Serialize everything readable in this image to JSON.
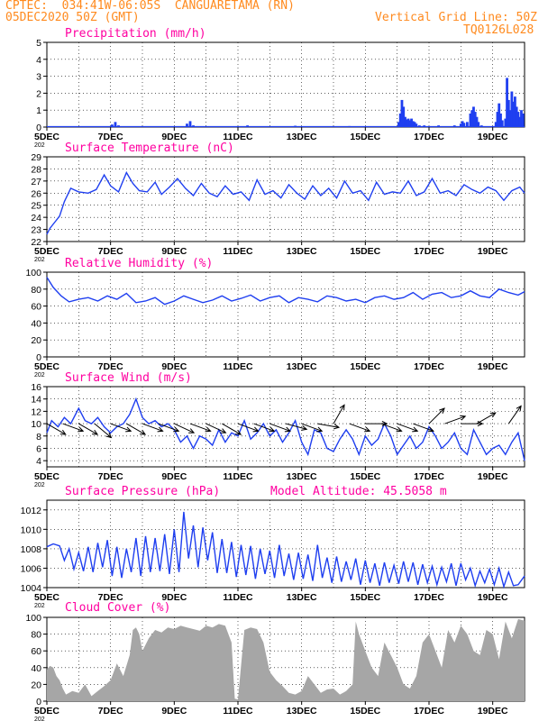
{
  "header": {
    "source": "CPTEC:",
    "coords": "034:41W-06:05S",
    "station": "CANGUARETAMA (RN)",
    "init": "05DEC2020 50Z (GMT)",
    "grid_note": "Vertical Grid Line: 50Z",
    "model_code": "TQ0126L028",
    "altitude_note": "Model Altitude: 45.5058 m",
    "year_stub": "202"
  },
  "x_ticks": [
    "5DEC",
    "7DEC",
    "9DEC",
    "11DEC",
    "13DEC",
    "15DEC",
    "17DEC",
    "19DEC"
  ],
  "colors": {
    "line": "#1f3ff0",
    "bar": "#1f3ff0",
    "cloud": "#a6a6a6",
    "title": "#ff00a0",
    "header": "#ff8a1e"
  },
  "chart_data": [
    {
      "type": "bar",
      "title": "Precipitation (mm/h)",
      "x_range_days": [
        "05DEC",
        "20DEC"
      ],
      "ylim": [
        0,
        5
      ],
      "yticks": [
        0,
        1,
        2,
        3,
        4,
        5
      ],
      "grid": true,
      "events": [
        {
          "day": 7.05,
          "value": 0.15
        },
        {
          "day": 7.15,
          "value": 0.3
        },
        {
          "day": 7.25,
          "value": 0.1
        },
        {
          "day": 9.4,
          "value": 0.2
        },
        {
          "day": 9.5,
          "value": 0.35
        },
        {
          "day": 9.6,
          "value": 0.1
        },
        {
          "day": 11.3,
          "value": 0.1
        },
        {
          "day": 12.8,
          "value": 0.08
        },
        {
          "day": 14.5,
          "value": 0.06
        },
        {
          "day": 16.05,
          "value": 0.3
        },
        {
          "day": 16.1,
          "value": 0.8
        },
        {
          "day": 16.15,
          "value": 1.6
        },
        {
          "day": 16.2,
          "value": 1.2
        },
        {
          "day": 16.25,
          "value": 0.6
        },
        {
          "day": 16.3,
          "value": 0.45
        },
        {
          "day": 16.35,
          "value": 0.5
        },
        {
          "day": 16.4,
          "value": 0.4
        },
        {
          "day": 16.45,
          "value": 0.5
        },
        {
          "day": 16.5,
          "value": 0.35
        },
        {
          "day": 16.55,
          "value": 0.3
        },
        {
          "day": 16.6,
          "value": 0.2
        },
        {
          "day": 16.7,
          "value": 0.1
        },
        {
          "day": 16.85,
          "value": 0.1
        },
        {
          "day": 17.3,
          "value": 0.1
        },
        {
          "day": 17.8,
          "value": 0.1
        },
        {
          "day": 18.0,
          "value": 0.2
        },
        {
          "day": 18.05,
          "value": 0.35
        },
        {
          "day": 18.1,
          "value": 0.25
        },
        {
          "day": 18.2,
          "value": 0.3
        },
        {
          "day": 18.3,
          "value": 0.8
        },
        {
          "day": 18.35,
          "value": 1.0
        },
        {
          "day": 18.4,
          "value": 1.2
        },
        {
          "day": 18.45,
          "value": 0.9
        },
        {
          "day": 18.5,
          "value": 0.6
        },
        {
          "day": 18.55,
          "value": 0.3
        },
        {
          "day": 18.65,
          "value": 0.1
        },
        {
          "day": 19.1,
          "value": 0.3
        },
        {
          "day": 19.15,
          "value": 0.9
        },
        {
          "day": 19.2,
          "value": 1.4
        },
        {
          "day": 19.25,
          "value": 0.8
        },
        {
          "day": 19.3,
          "value": 0.4
        },
        {
          "day": 19.4,
          "value": 0.5
        },
        {
          "day": 19.45,
          "value": 2.9
        },
        {
          "day": 19.5,
          "value": 1.6
        },
        {
          "day": 19.55,
          "value": 1.0
        },
        {
          "day": 19.6,
          "value": 2.1
        },
        {
          "day": 19.65,
          "value": 1.5
        },
        {
          "day": 19.7,
          "value": 1.8
        },
        {
          "day": 19.75,
          "value": 1.2
        },
        {
          "day": 19.8,
          "value": 0.9
        },
        {
          "day": 19.85,
          "value": 0.6
        },
        {
          "day": 19.9,
          "value": 1.0
        },
        {
          "day": 19.95,
          "value": 0.8
        }
      ]
    },
    {
      "type": "line",
      "title": "Surface Temperature (nC)",
      "ylim": [
        22,
        29
      ],
      "yticks": [
        22,
        23,
        24,
        25,
        26,
        27,
        28,
        29
      ],
      "grid": true,
      "x": [
        5.0,
        5.1,
        5.25,
        5.4,
        5.55,
        5.75,
        6.0,
        6.3,
        6.55,
        6.8,
        7.0,
        7.25,
        7.5,
        7.7,
        7.9,
        8.15,
        8.4,
        8.6,
        8.85,
        9.1,
        9.35,
        9.6,
        9.85,
        10.1,
        10.35,
        10.6,
        10.85,
        11.1,
        11.35,
        11.6,
        11.85,
        12.1,
        12.35,
        12.6,
        12.85,
        13.1,
        13.35,
        13.6,
        13.85,
        14.1,
        14.35,
        14.6,
        14.85,
        15.1,
        15.35,
        15.6,
        15.85,
        16.1,
        16.35,
        16.6,
        16.85,
        17.1,
        17.35,
        17.6,
        17.85,
        18.1,
        18.35,
        18.6,
        18.85,
        19.1,
        19.35,
        19.6,
        19.85,
        20.0
      ],
      "y": [
        22.6,
        23.1,
        23.6,
        24.1,
        25.3,
        26.4,
        26.1,
        26.0,
        26.3,
        27.5,
        26.6,
        26.1,
        27.7,
        26.8,
        26.2,
        26.1,
        26.9,
        25.9,
        26.5,
        27.2,
        26.4,
        25.8,
        26.8,
        26.0,
        25.7,
        26.6,
        25.9,
        26.1,
        25.4,
        27.1,
        25.9,
        26.2,
        25.6,
        26.7,
        26.0,
        25.5,
        26.6,
        25.8,
        26.4,
        25.6,
        27.0,
        26.0,
        26.2,
        25.4,
        26.9,
        25.9,
        26.1,
        26.0,
        27.0,
        25.8,
        26.1,
        27.2,
        26.0,
        26.2,
        25.8,
        26.7,
        26.3,
        26.0,
        26.5,
        26.2,
        25.4,
        26.2,
        26.5,
        26.0
      ]
    },
    {
      "type": "line",
      "title": "Relative Humidity (%)",
      "ylim": [
        0,
        100
      ],
      "yticks": [
        0,
        20,
        40,
        60,
        80,
        100
      ],
      "grid": true,
      "x": [
        5.0,
        5.2,
        5.45,
        5.7,
        6.0,
        6.3,
        6.6,
        6.9,
        7.2,
        7.5,
        7.8,
        8.1,
        8.4,
        8.7,
        9.0,
        9.3,
        9.6,
        9.9,
        10.2,
        10.5,
        10.8,
        11.1,
        11.4,
        11.7,
        12.0,
        12.3,
        12.6,
        12.9,
        13.2,
        13.5,
        13.8,
        14.1,
        14.4,
        14.7,
        15.0,
        15.3,
        15.6,
        15.9,
        16.2,
        16.5,
        16.8,
        17.1,
        17.4,
        17.7,
        18.0,
        18.3,
        18.6,
        18.9,
        19.2,
        19.5,
        19.8,
        20.0
      ],
      "y": [
        94,
        82,
        72,
        65,
        68,
        70,
        66,
        72,
        68,
        75,
        64,
        66,
        70,
        62,
        66,
        72,
        68,
        64,
        67,
        72,
        66,
        69,
        73,
        66,
        70,
        72,
        64,
        70,
        68,
        65,
        72,
        70,
        66,
        68,
        64,
        70,
        72,
        68,
        70,
        76,
        68,
        74,
        76,
        70,
        72,
        78,
        72,
        70,
        80,
        76,
        73,
        77
      ]
    },
    {
      "type": "line",
      "title": "Surface Wind (m/s)",
      "ylim": [
        3,
        16
      ],
      "yticks": [
        4,
        6,
        8,
        10,
        12,
        14,
        16
      ],
      "grid": true,
      "x": [
        5.0,
        5.15,
        5.35,
        5.55,
        5.75,
        6.0,
        6.2,
        6.4,
        6.6,
        6.8,
        7.0,
        7.2,
        7.4,
        7.6,
        7.8,
        8.0,
        8.2,
        8.4,
        8.6,
        8.8,
        9.0,
        9.2,
        9.4,
        9.6,
        9.8,
        10.0,
        10.2,
        10.4,
        10.6,
        10.8,
        11.0,
        11.2,
        11.4,
        11.6,
        11.8,
        12.0,
        12.2,
        12.4,
        12.6,
        12.8,
        13.0,
        13.2,
        13.4,
        13.6,
        13.8,
        14.0,
        14.2,
        14.4,
        14.6,
        14.8,
        15.0,
        15.2,
        15.4,
        15.6,
        15.8,
        16.0,
        16.2,
        16.4,
        16.6,
        16.8,
        17.0,
        17.2,
        17.4,
        17.6,
        17.8,
        18.0,
        18.2,
        18.4,
        18.6,
        18.8,
        19.0,
        19.2,
        19.4,
        19.6,
        19.8,
        20.0
      ],
      "y": [
        8.5,
        10.5,
        9.5,
        11.0,
        10.0,
        12.5,
        10.5,
        10.0,
        11.0,
        9.5,
        8.5,
        9.5,
        10.0,
        11.5,
        14.0,
        11.0,
        10.0,
        10.5,
        9.5,
        10.0,
        9.0,
        7.0,
        8.0,
        6.0,
        8.0,
        7.5,
        6.5,
        9.0,
        7.0,
        8.5,
        8.0,
        10.5,
        7.5,
        8.5,
        10.0,
        8.0,
        9.0,
        7.0,
        8.5,
        10.5,
        7.0,
        5.0,
        9.0,
        8.5,
        6.0,
        5.5,
        7.5,
        9.0,
        7.5,
        5.0,
        8.0,
        6.5,
        7.5,
        10.0,
        8.0,
        5.0,
        6.5,
        8.0,
        6.0,
        7.0,
        9.5,
        8.0,
        6.0,
        7.0,
        8.5,
        6.0,
        5.0,
        9.0,
        7.0,
        5.0,
        6.0,
        6.5,
        5.0,
        7.0,
        8.5,
        4.0
      ],
      "vectors_deg_from": [
        300,
        290,
        300,
        310,
        290,
        300,
        290,
        290,
        295,
        290,
        295,
        300,
        290,
        290,
        290,
        285,
        290,
        280,
        210,
        290,
        270,
        290,
        290,
        290,
        225,
        250,
        270,
        240,
        215
      ],
      "vectors_day": [
        5.0,
        5.5,
        6.0,
        6.5,
        7.0,
        7.5,
        8.0,
        8.5,
        9.0,
        9.5,
        10.0,
        10.5,
        11.0,
        11.5,
        12.0,
        12.5,
        13.0,
        13.5,
        14.0,
        14.5,
        15.0,
        15.5,
        16.0,
        16.5,
        17.0,
        17.5,
        18.0,
        18.5,
        19.5
      ]
    },
    {
      "type": "line",
      "title": "Surface Pressure (hPa)",
      "ylim": [
        1004,
        1013
      ],
      "yticks": [
        1004,
        1006,
        1008,
        1010,
        1012
      ],
      "grid": true,
      "x": [
        5.0,
        5.2,
        5.4,
        5.55,
        5.7,
        5.85,
        6.0,
        6.15,
        6.3,
        6.45,
        6.6,
        6.75,
        6.9,
        7.05,
        7.2,
        7.35,
        7.5,
        7.65,
        7.8,
        7.95,
        8.1,
        8.25,
        8.4,
        8.55,
        8.7,
        8.85,
        9.0,
        9.15,
        9.3,
        9.45,
        9.6,
        9.75,
        9.9,
        10.05,
        10.2,
        10.35,
        10.5,
        10.65,
        10.8,
        10.95,
        11.1,
        11.25,
        11.4,
        11.55,
        11.7,
        11.85,
        12.0,
        12.15,
        12.3,
        12.45,
        12.6,
        12.75,
        12.9,
        13.05,
        13.2,
        13.35,
        13.5,
        13.65,
        13.8,
        13.95,
        14.1,
        14.25,
        14.4,
        14.55,
        14.7,
        14.85,
        15.0,
        15.15,
        15.3,
        15.45,
        15.6,
        15.75,
        15.9,
        16.05,
        16.2,
        16.35,
        16.5,
        16.65,
        16.8,
        16.95,
        17.1,
        17.25,
        17.4,
        17.55,
        17.7,
        17.85,
        18.0,
        18.15,
        18.3,
        18.45,
        18.6,
        18.75,
        18.9,
        19.05,
        19.2,
        19.35,
        19.5,
        19.65,
        19.8,
        20.0
      ],
      "y": [
        1008.2,
        1008.5,
        1008.3,
        1006.8,
        1008.0,
        1005.9,
        1007.6,
        1005.7,
        1008.2,
        1005.6,
        1008.6,
        1006.1,
        1008.9,
        1005.2,
        1008.2,
        1005.0,
        1008.0,
        1005.6,
        1009.1,
        1005.2,
        1009.3,
        1005.6,
        1009.1,
        1005.7,
        1009.5,
        1005.4,
        1010.0,
        1005.6,
        1011.8,
        1007.0,
        1010.4,
        1006.1,
        1010.2,
        1006.8,
        1009.7,
        1005.5,
        1009.0,
        1005.5,
        1008.7,
        1005.1,
        1008.4,
        1005.3,
        1008.3,
        1004.9,
        1008.0,
        1005.4,
        1007.8,
        1005.0,
        1008.4,
        1005.2,
        1007.5,
        1004.8,
        1007.6,
        1004.9,
        1007.4,
        1004.7,
        1008.4,
        1005.0,
        1007.1,
        1004.5,
        1007.2,
        1004.6,
        1006.7,
        1004.8,
        1007.0,
        1004.3,
        1006.8,
        1004.5,
        1006.5,
        1004.2,
        1006.6,
        1004.5,
        1006.3,
        1004.4,
        1006.7,
        1004.6,
        1006.6,
        1004.3,
        1006.4,
        1004.5,
        1006.2,
        1004.3,
        1006.1,
        1004.6,
        1006.5,
        1004.2,
        1006.5,
        1004.8,
        1006.0,
        1004.2,
        1005.7,
        1004.5,
        1005.9,
        1004.3,
        1006.0,
        1004.1,
        1005.6,
        1004.2,
        1004.3,
        1005.2
      ]
    },
    {
      "type": "area",
      "title": "Cloud Cover (%)",
      "ylim": [
        0,
        100
      ],
      "yticks": [
        0,
        20,
        40,
        60,
        80,
        100
      ],
      "grid": true,
      "x": [
        5.0,
        5.1,
        5.2,
        5.3,
        5.4,
        5.5,
        5.6,
        5.8,
        6.0,
        6.2,
        6.4,
        6.6,
        6.8,
        7.0,
        7.2,
        7.4,
        7.6,
        7.7,
        7.8,
        7.9,
        8.0,
        8.2,
        8.4,
        8.6,
        8.8,
        9.0,
        9.2,
        9.4,
        9.6,
        9.8,
        10.0,
        10.2,
        10.4,
        10.6,
        10.8,
        10.9,
        11.0,
        11.2,
        11.4,
        11.6,
        11.8,
        12.0,
        12.2,
        12.4,
        12.6,
        12.8,
        13.0,
        13.2,
        13.4,
        13.6,
        13.8,
        14.0,
        14.2,
        14.4,
        14.6,
        14.7,
        14.8,
        15.0,
        15.2,
        15.4,
        15.6,
        15.8,
        16.0,
        16.2,
        16.4,
        16.6,
        16.8,
        17.0,
        17.2,
        17.4,
        17.6,
        17.8,
        18.0,
        18.2,
        18.4,
        18.6,
        18.8,
        19.0,
        19.2,
        19.4,
        19.6,
        19.8,
        20.0
      ],
      "y": [
        38,
        42,
        40,
        30,
        25,
        15,
        8,
        12,
        10,
        20,
        6,
        12,
        18,
        25,
        45,
        30,
        55,
        85,
        88,
        80,
        60,
        75,
        85,
        82,
        88,
        86,
        90,
        88,
        86,
        84,
        90,
        88,
        92,
        90,
        70,
        3,
        2,
        85,
        88,
        86,
        70,
        35,
        25,
        18,
        10,
        8,
        12,
        30,
        20,
        10,
        14,
        15,
        8,
        12,
        20,
        95,
        80,
        60,
        40,
        30,
        70,
        55,
        40,
        20,
        15,
        30,
        70,
        80,
        60,
        40,
        85,
        70,
        90,
        80,
        60,
        55,
        85,
        80,
        50,
        95,
        75,
        98,
        96
      ]
    }
  ]
}
